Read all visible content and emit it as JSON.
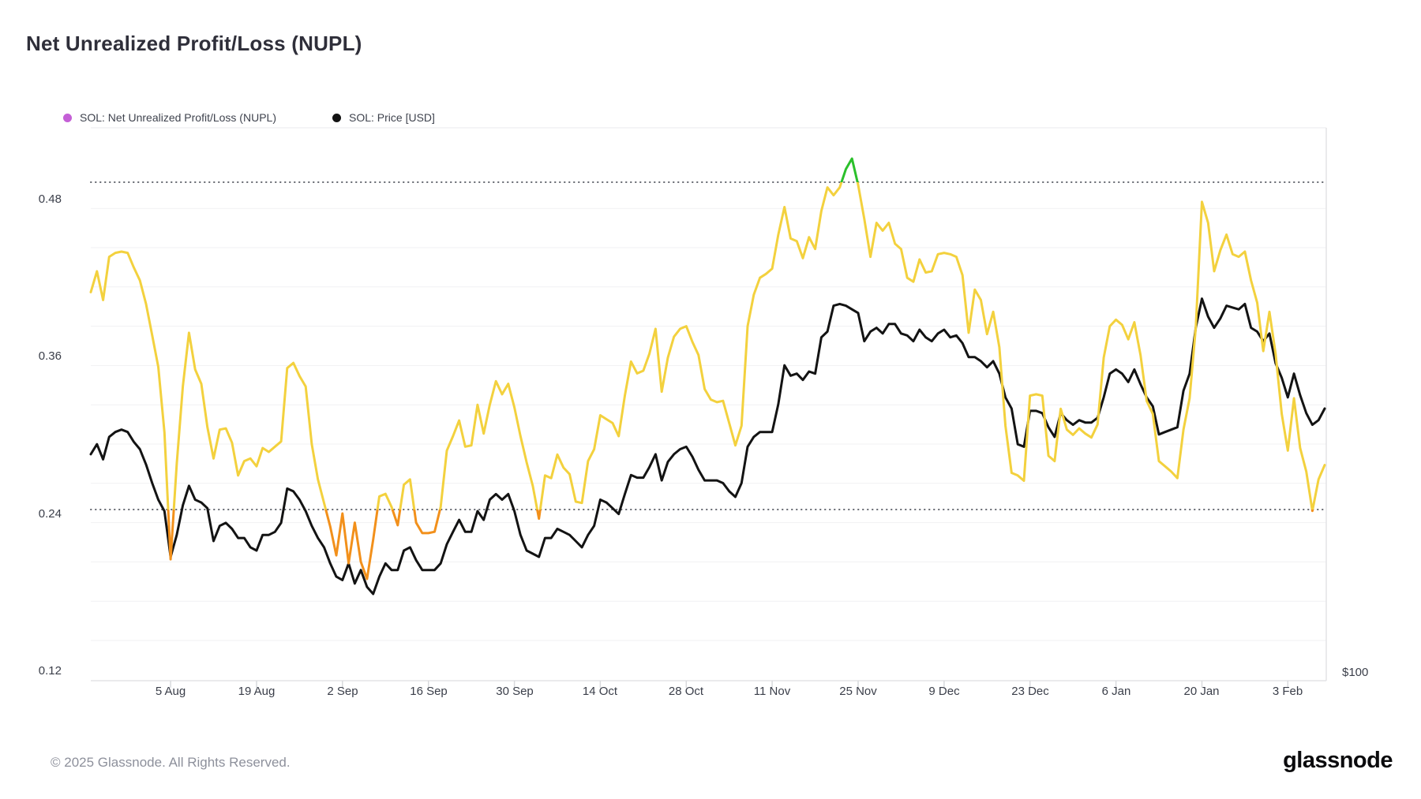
{
  "header": {
    "title": "Net Unrealized Profit/Loss (NUPL)"
  },
  "legend": [
    {
      "label": "SOL: Net Unrealized Profit/Loss (NUPL)",
      "marker_color": "#C45FD6"
    },
    {
      "label": "SOL: Price [USD]",
      "marker_color": "#131313"
    }
  ],
  "footer": {
    "copyright": "© 2025 Glassnode. All Rights Reserved.",
    "brand": "glassnode"
  },
  "colors": {
    "grid": "#f1f1f3",
    "axis_border": "#e3e3e6",
    "tick": "#d9dadd",
    "threshold_dotted": "#63666e",
    "nupl_yellow": "#F3D13E",
    "nupl_orange": "#F2901B",
    "nupl_green": "#2BC02B",
    "price_black": "#131313"
  },
  "chart_data": {
    "type": "line",
    "title": "Net Unrealized Profit/Loss (NUPL)",
    "grid": "horizontal-only",
    "legend_position": "top-left",
    "left_axis": {
      "tick_labels": [
        "0.48",
        "0.36",
        "0.24",
        "0.12"
      ],
      "tick_values": [
        0.48,
        0.36,
        0.24,
        0.12
      ],
      "range": [
        0.12,
        0.545
      ],
      "gridline_step": 0.03,
      "threshold_lines": [
        0.5,
        0.25
      ]
    },
    "right_axis": {
      "tick_labels": [
        "$100"
      ],
      "scale": "log",
      "bottom_value": 100
    },
    "x_tick_labels": [
      {
        "label": "5 Aug",
        "index": 13
      },
      {
        "label": "19 Aug",
        "index": 27
      },
      {
        "label": "2 Sep",
        "index": 41
      },
      {
        "label": "16 Sep",
        "index": 55
      },
      {
        "label": "30 Sep",
        "index": 69
      },
      {
        "label": "14 Oct",
        "index": 83
      },
      {
        "label": "28 Oct",
        "index": 97
      },
      {
        "label": "11 Nov",
        "index": 111
      },
      {
        "label": "25 Nov",
        "index": 125
      },
      {
        "label": "9 Dec",
        "index": 139
      },
      {
        "label": "23 Dec",
        "index": 153
      },
      {
        "label": "6 Jan",
        "index": 167
      },
      {
        "label": "20 Jan",
        "index": 181
      },
      {
        "label": "3 Feb",
        "index": 195
      }
    ],
    "series": [
      {
        "name": "SOL: Net Unrealized Profit/Loss (NUPL)",
        "axis": "left",
        "color_zones": {
          "above_0.50": "green",
          "0.25_to_0.50": "yellow",
          "below_0.25": "orange"
        },
        "values": [
          0.416,
          0.432,
          0.41,
          0.443,
          0.446,
          0.447,
          0.446,
          0.435,
          0.425,
          0.407,
          0.383,
          0.359,
          0.309,
          0.212,
          0.285,
          0.344,
          0.385,
          0.357,
          0.346,
          0.313,
          0.289,
          0.311,
          0.312,
          0.301,
          0.276,
          0.287,
          0.289,
          0.283,
          0.297,
          0.294,
          0.298,
          0.302,
          0.358,
          0.362,
          0.352,
          0.344,
          0.3,
          0.273,
          0.255,
          0.237,
          0.215,
          0.247,
          0.209,
          0.24,
          0.21,
          0.197,
          0.227,
          0.26,
          0.262,
          0.252,
          0.238,
          0.269,
          0.273,
          0.24,
          0.232,
          0.232,
          0.233,
          0.252,
          0.295,
          0.306,
          0.318,
          0.298,
          0.299,
          0.33,
          0.308,
          0.33,
          0.348,
          0.338,
          0.346,
          0.328,
          0.306,
          0.286,
          0.268,
          0.243,
          0.276,
          0.274,
          0.292,
          0.282,
          0.277,
          0.256,
          0.255,
          0.287,
          0.296,
          0.322,
          0.319,
          0.316,
          0.306,
          0.337,
          0.363,
          0.354,
          0.356,
          0.369,
          0.388,
          0.34,
          0.366,
          0.382,
          0.388,
          0.39,
          0.378,
          0.368,
          0.342,
          0.334,
          0.332,
          0.333,
          0.316,
          0.299,
          0.314,
          0.39,
          0.414,
          0.427,
          0.43,
          0.434,
          0.46,
          0.481,
          0.457,
          0.455,
          0.442,
          0.458,
          0.449,
          0.478,
          0.496,
          0.49,
          0.496,
          0.51,
          0.518,
          0.498,
          0.472,
          0.443,
          0.469,
          0.463,
          0.469,
          0.453,
          0.449,
          0.427,
          0.424,
          0.441,
          0.431,
          0.432,
          0.445,
          0.446,
          0.445,
          0.443,
          0.429,
          0.385,
          0.418,
          0.41,
          0.384,
          0.401,
          0.374,
          0.314,
          0.278,
          0.276,
          0.272,
          0.337,
          0.338,
          0.337,
          0.291,
          0.287,
          0.327,
          0.311,
          0.307,
          0.312,
          0.308,
          0.305,
          0.315,
          0.366,
          0.39,
          0.395,
          0.391,
          0.38,
          0.393,
          0.368,
          0.333,
          0.323,
          0.287,
          0.283,
          0.279,
          0.274,
          0.311,
          0.335,
          0.389,
          0.485,
          0.469,
          0.432,
          0.448,
          0.46,
          0.445,
          0.443,
          0.447,
          0.425,
          0.408,
          0.371,
          0.401,
          0.369,
          0.323,
          0.295,
          0.335,
          0.297,
          0.279,
          0.249,
          0.273,
          0.284
        ]
      },
      {
        "name": "SOL: Price [USD]",
        "axis": "right",
        "color": "#131313",
        "values": [
          169,
          173,
          167,
          176,
          178,
          179,
          178,
          174,
          171,
          165,
          158,
          152,
          148,
          133,
          140,
          150,
          157,
          152,
          151,
          149,
          138,
          143,
          144,
          142,
          139,
          139,
          136,
          135,
          140,
          140,
          141,
          144,
          156,
          155,
          152,
          148,
          143,
          139,
          136,
          131,
          127,
          126,
          131,
          125,
          129,
          124,
          122,
          127,
          131,
          129,
          129,
          135,
          136,
          132,
          129,
          129,
          129,
          131,
          137,
          141,
          145,
          141,
          141,
          148,
          145,
          152,
          154,
          152,
          154,
          148,
          140,
          135,
          134,
          133,
          139,
          139,
          142,
          141,
          140,
          138,
          136,
          140,
          143,
          152,
          151,
          149,
          147,
          154,
          161,
          160,
          160,
          164,
          169,
          159,
          166,
          169,
          171,
          172,
          168,
          163,
          159,
          159,
          159,
          158,
          155,
          153,
          158,
          172,
          176,
          178,
          178,
          178,
          190,
          208,
          203,
          204,
          201,
          205,
          204,
          222,
          225,
          239,
          240,
          239,
          237,
          235,
          220,
          225,
          227,
          224,
          229,
          229,
          224,
          223,
          220,
          226,
          222,
          220,
          224,
          226,
          222,
          223,
          219,
          212,
          212,
          210,
          207,
          210,
          204,
          193,
          188,
          173,
          172,
          187,
          187,
          186,
          180,
          176,
          186,
          183,
          181,
          183,
          182,
          182,
          184,
          193,
          204,
          206,
          204,
          200,
          206,
          199,
          193,
          189,
          177,
          178,
          179,
          180,
          196,
          204,
          227,
          243,
          233,
          227,
          232,
          239,
          238,
          237,
          240,
          227,
          225,
          220,
          224,
          209,
          202,
          193,
          204,
          194,
          186,
          181,
          183,
          188
        ]
      }
    ]
  }
}
